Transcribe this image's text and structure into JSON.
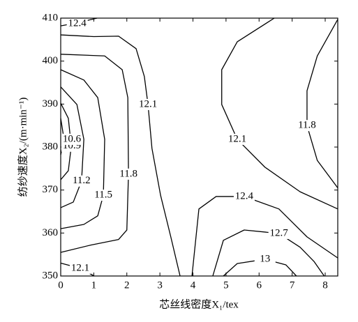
{
  "chart_data": {
    "type": "contour",
    "xlabel": "芯丝线密度X₁/tex",
    "ylabel": "纺纱速度X₂/(m·min⁻¹)",
    "xlim": [
      0,
      8.38
    ],
    "ylim": [
      350,
      410
    ],
    "xticks": [
      0,
      1,
      2,
      3,
      4,
      5,
      6,
      7,
      8
    ],
    "yticks": [
      350,
      360,
      370,
      380,
      390,
      400,
      410
    ],
    "color": "#000000",
    "contours": [
      {
        "level": 12.4,
        "x": [
          0,
          0.5,
          1.1
        ],
        "y": [
          408.2,
          408.9,
          410
        ]
      },
      {
        "level": 12.1,
        "x": [
          0,
          1,
          1.75,
          2.28,
          2.53,
          2.64,
          2.76,
          3.02,
          3.33,
          3.61
        ],
        "y": [
          406.1,
          405.7,
          405.8,
          402.9,
          396.4,
          389.9,
          379.7,
          368.8,
          359.1,
          350
        ]
      },
      {
        "level": 11.8,
        "x": [
          0,
          1.33,
          1.86,
          2.03,
          2.05,
          2.0,
          1.75,
          0.91,
          0
        ],
        "y": [
          401.6,
          401.2,
          398,
          391.5,
          373.7,
          360.7,
          358.5,
          357.2,
          355.5
        ]
      },
      {
        "level": 11.5,
        "x": [
          0,
          0.7,
          1.12,
          1.33,
          1.29,
          1.12,
          0.7,
          0
        ],
        "y": [
          398,
          395.6,
          391.5,
          381.8,
          368.8,
          364,
          362,
          361
        ]
      },
      {
        "level": 11.2,
        "x": [
          0,
          0.49,
          0.7,
          0.63,
          0.38,
          0
        ],
        "y": [
          394,
          389.9,
          381.8,
          372.1,
          367.2,
          365.9
        ]
      },
      {
        "level": 10.9,
        "x": [
          0,
          0.23,
          0.32,
          0.23,
          0
        ],
        "y": [
          390.2,
          386.7,
          380.2,
          374.5,
          372.4
        ]
      },
      {
        "level": 10.6,
        "x": [
          0,
          0.1,
          0
        ],
        "y": [
          386.7,
          381.8,
          378.2
        ]
      },
      {
        "level": 12.1,
        "x": [
          0,
          0.59,
          1.01
        ],
        "y": [
          353,
          351.8,
          350
        ]
      },
      {
        "level": 12.1,
        "x": [
          6.46,
          5.34,
          4.87,
          4.87,
          5.34,
          6.18,
          7.24,
          8.38
        ],
        "y": [
          410,
          404.5,
          398,
          389.9,
          381.8,
          375.3,
          369.6,
          365.6
        ]
      },
      {
        "level": 11.8,
        "x": [
          8.38,
          7.76,
          7.45,
          7.45,
          7.76,
          8.38
        ],
        "y": [
          409.7,
          401.2,
          393.1,
          385,
          376.9,
          370.5
        ]
      },
      {
        "level": 12.4,
        "x": [
          3.97,
          4.18,
          4.7,
          5.55,
          6.6,
          7.45,
          8.38
        ],
        "y": [
          350,
          365.6,
          368.5,
          368.5,
          365.6,
          359.1,
          354.2
        ]
      },
      {
        "level": 12.7,
        "x": [
          4.6,
          4.92,
          5.55,
          6.6,
          7.24,
          7.66,
          7.97
        ],
        "y": [
          350,
          358.3,
          360.7,
          359.9,
          356.7,
          353.4,
          350
        ]
      },
      {
        "level": 13.0,
        "x": [
          4.92,
          5.34,
          6.18,
          6.81,
          7.13
        ],
        "y": [
          350,
          352.9,
          353.9,
          352.6,
          350
        ]
      }
    ]
  }
}
